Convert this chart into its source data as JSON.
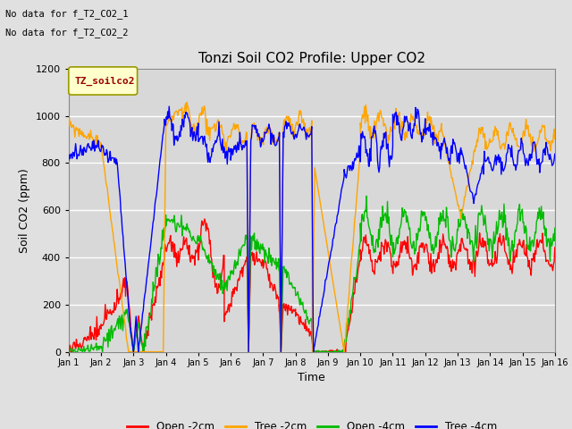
{
  "title": "Tonzi Soil CO2 Profile: Upper CO2",
  "xlabel": "Time",
  "ylabel": "Soil CO2 (ppm)",
  "top_left_text_line1": "No data for f_T2_CO2_1",
  "top_left_text_line2": "No data for f_T2_CO2_2",
  "legend_box_label": "TZ_soilco2",
  "legend_entries": [
    "Open -2cm",
    "Tree -2cm",
    "Open -4cm",
    "Tree -4cm"
  ],
  "legend_colors": [
    "#ff0000",
    "#ffa500",
    "#00bb00",
    "#0000ff"
  ],
  "ylim": [
    0,
    1200
  ],
  "yticks": [
    0,
    200,
    400,
    600,
    800,
    1000,
    1200
  ],
  "background_color": "#e0e0e0",
  "plot_bg_color": "#d8d8d8",
  "grid_color": "#ffffff",
  "xtick_labels": [
    "Jan 1",
    "Jan 2",
    "Jan 3",
    "Jan 4",
    "Jan 5",
    "Jan 6",
    "Jan 7",
    "Jan 8",
    "Jan 9",
    "Jan 10",
    "Jan 11",
    "Jan 12",
    "Jan 13",
    "Jan 14",
    "Jan 15",
    "Jan 16"
  ]
}
